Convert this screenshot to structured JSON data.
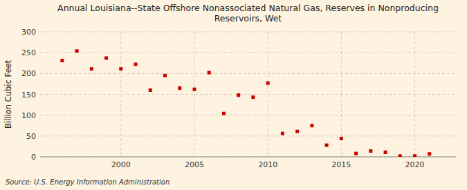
{
  "chart_data": {
    "type": "scatter",
    "title": "Annual Louisiana--State Offshore Nonassociated Natural Gas, Reserves in Nonproducing\nReservoirs, Wet",
    "y_label": "Billion Cubic Feet",
    "annotations": [
      "Source: U.S. Energy Information Administration"
    ],
    "x": [
      1996,
      1997,
      1998,
      1999,
      2000,
      2001,
      2002,
      2003,
      2004,
      2005,
      2006,
      2007,
      2008,
      2009,
      2010,
      2011,
      2012,
      2013,
      2014,
      2015,
      2016,
      2017,
      2018,
      2019,
      2020,
      2021
    ],
    "values": [
      231,
      254,
      211,
      237,
      211,
      222,
      160,
      195,
      165,
      162,
      202,
      104,
      148,
      143,
      177,
      56,
      61,
      75,
      28,
      44,
      8,
      14,
      11,
      2,
      2,
      7
    ],
    "color": "#cc0000",
    "marker": "square",
    "xlim": [
      1994.5,
      2022.8
    ],
    "xticks": [
      2000,
      2005,
      2010,
      2015,
      2020
    ],
    "ylim": [
      0,
      300
    ],
    "yticks": [
      0,
      50,
      100,
      150,
      200,
      250,
      300
    ],
    "grid": true
  }
}
